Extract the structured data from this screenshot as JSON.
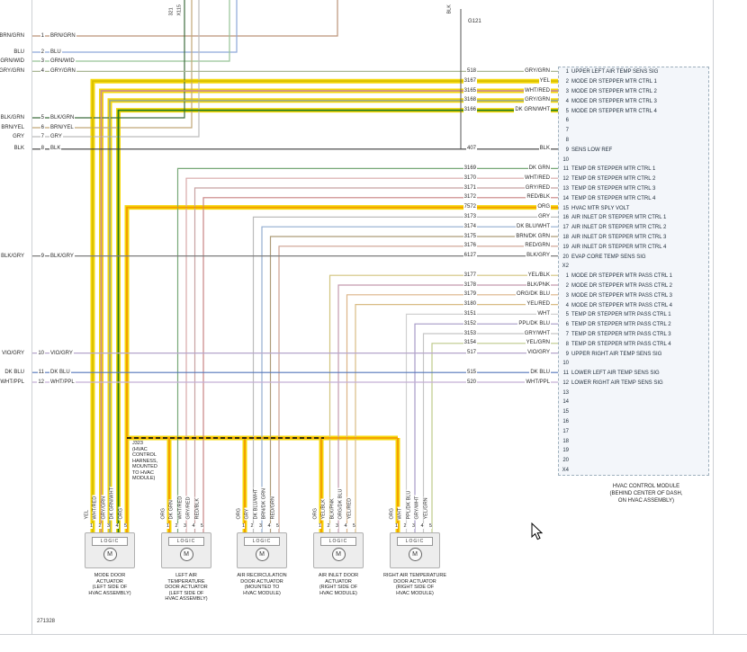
{
  "page": {
    "number": "271328"
  },
  "colors": {
    "highlight": "#f6d80a",
    "dashed_harness": "#141414",
    "page_border": "#cdd0d4",
    "module_box_border": "#9fb0bd",
    "module_box_fill": "#e9eff6"
  },
  "top_labels": {
    "circuit": "321",
    "connector": "X115",
    "ground_wire": "BLK",
    "ground": "G121"
  },
  "left_pins": [
    {
      "pin": "1",
      "color": "BRN/GRN",
      "wire": "#ba9277"
    },
    {
      "pin": "2",
      "color": "BLU",
      "wire": "#8da7d9"
    },
    {
      "pin": "3",
      "color": "GRN/WID",
      "wire": "#97c397"
    },
    {
      "pin": "4",
      "color": "GRY/GRN",
      "wire": "#a9b694"
    },
    {
      "pin": "5",
      "color": "BLK/GRN",
      "wire": "#3f6e3f"
    },
    {
      "pin": "6",
      "color": "BRN/YEL",
      "wire": "#c1a777"
    },
    {
      "pin": "7",
      "color": "GRY",
      "wire": "#bcbcbc"
    },
    {
      "pin": "8",
      "color": "BLK",
      "wire": "#3c3c3c"
    },
    {
      "pin": "9",
      "color": "BLK/GRY",
      "wire": "#7b7b7b"
    },
    {
      "pin": "10",
      "color": "VIO/GRY",
      "wire": "#b6a5ca"
    },
    {
      "pin": "11",
      "color": "DK BLU",
      "wire": "#5576ba"
    },
    {
      "pin": "12",
      "color": "WHT/PPL",
      "wire": "#c4afd5"
    }
  ],
  "circuits": [
    {
      "num": "518",
      "color": "GRY/GRN",
      "row": 0,
      "left": true,
      "wire": "#a9b694"
    },
    {
      "num": "3167",
      "color": "YEL",
      "row": 1,
      "bend": 103,
      "hl": true,
      "wire": "#d8c000"
    },
    {
      "num": "3165",
      "color": "WHT/RED",
      "row": 2,
      "bend": 112.5,
      "hl": true,
      "wire": "#cd8f8f"
    },
    {
      "num": "3168",
      "color": "GRY/GRN",
      "row": 3,
      "bend": 122,
      "hl": true,
      "wire": "#9cab85"
    },
    {
      "num": "3166",
      "color": "DK GRN/WHT",
      "row": 4,
      "bend": 131.5,
      "hl": true,
      "wire": "#1e7a1e"
    },
    {
      "num": "407",
      "color": "BLK",
      "row": 8,
      "left": true,
      "wire": "#3c3c3c"
    },
    {
      "num": "3169",
      "color": "DK GRN",
      "row": 10,
      "bend": 197.5,
      "wire": "#77a877"
    },
    {
      "num": "3170",
      "color": "WHT/RED",
      "row": 11,
      "bend": 207,
      "wire": "#d8a8a8"
    },
    {
      "num": "3171",
      "color": "GRY/RED",
      "row": 12,
      "bend": 216.5,
      "wire": "#c7a2a2"
    },
    {
      "num": "3172",
      "color": "RED/BLK",
      "row": 13,
      "bend": 226,
      "wire": "#c88484"
    },
    {
      "num": "7572",
      "color": "ORG",
      "row": 14,
      "bend": 141,
      "hl": true,
      "wire": "#f39c00"
    },
    {
      "num": "3173",
      "color": "GRY",
      "row": 15,
      "bend": 281.5,
      "wire": "#bcbcbc"
    },
    {
      "num": "3174",
      "color": "DK BLU/WHT",
      "row": 16,
      "bend": 291,
      "wire": "#92add0"
    },
    {
      "num": "3175",
      "color": "BRN/DK GRN",
      "row": 17,
      "bend": 300.5,
      "wire": "#ad9c79"
    },
    {
      "num": "3176",
      "color": "RED/GRN",
      "row": 18,
      "bend": 310,
      "wire": "#cda08f"
    },
    {
      "num": "6127",
      "color": "BLK/GRY",
      "row": 19,
      "left": true,
      "wire": "#7b7b7b"
    },
    {
      "num": "3177",
      "color": "YEL/BLK",
      "row": 21,
      "bend": 366.5,
      "wire": "#d2c47d"
    },
    {
      "num": "3178",
      "color": "BLK/PNK",
      "row": 22,
      "bend": 376,
      "wire": "#c399ad"
    },
    {
      "num": "3179",
      "color": "ORG/DK BLU",
      "row": 23,
      "bend": 385.5,
      "wire": "#dcb387"
    },
    {
      "num": "3180",
      "color": "YEL/RED",
      "row": 24,
      "bend": 395,
      "wire": "#d9bc84"
    },
    {
      "num": "3151",
      "color": "WHT",
      "row": 25,
      "bend": 451.5,
      "wire": "#d1d1d1"
    },
    {
      "num": "3152",
      "color": "PPL/DK BLU",
      "row": 26,
      "bend": 461,
      "wire": "#a69ac7"
    },
    {
      "num": "3153",
      "color": "GRY/WHT",
      "row": 27,
      "bend": 470.5,
      "wire": "#c5c5c5"
    },
    {
      "num": "3154",
      "color": "YEL/GRN",
      "row": 28,
      "bend": 480,
      "wire": "#bdca8a"
    },
    {
      "num": "517",
      "color": "VIO/GRY",
      "row": 29,
      "left": true,
      "wire": "#b6a5ca"
    },
    {
      "num": "515",
      "color": "DK BLU",
      "row": 31,
      "left": true,
      "wire": "#5576ba"
    },
    {
      "num": "520",
      "color": "WHT/PPL",
      "row": 32,
      "left": true,
      "wire": "#c4afd5"
    }
  ],
  "hvac_module": {
    "caption_lines": [
      "HVAC CONTROL MODULE",
      "(BEHIND CENTER OF DASH,",
      "ON HVAC ASSEMBLY)"
    ],
    "rows": [
      {
        "pin": "1",
        "label": "UPPER LEFT AIR TEMP SENS SIG"
      },
      {
        "pin": "2",
        "label": "MODE DR STEPPER MTR CTRL 1"
      },
      {
        "pin": "3",
        "label": "MODE DR STEPPER MTR CTRL 2"
      },
      {
        "pin": "4",
        "label": "MODE DR STEPPER MTR CTRL 3"
      },
      {
        "pin": "5",
        "label": "MODE DR STEPPER MTR CTRL 4"
      },
      {
        "pin": "6",
        "label": ""
      },
      {
        "pin": "7",
        "label": ""
      },
      {
        "pin": "8",
        "label": ""
      },
      {
        "pin": "9",
        "label": "SENS LOW REF"
      },
      {
        "pin": "10",
        "label": ""
      },
      {
        "pin": "11",
        "label": "TEMP DR STEPPER MTR CTRL 1"
      },
      {
        "pin": "12",
        "label": "TEMP DR STEPPER MTR CTRL 2"
      },
      {
        "pin": "13",
        "label": "TEMP DR STEPPER MTR CTRL 3"
      },
      {
        "pin": "14",
        "label": "TEMP DR STEPPER MTR CTRL 4"
      },
      {
        "pin": "15",
        "label": "HVAC MTR SPLY VOLT"
      },
      {
        "pin": "16",
        "label": "AIR INLET DR STEPPER MTR CTRL 1"
      },
      {
        "pin": "17",
        "label": "AIR INLET DR STEPPER MTR CTRL 2"
      },
      {
        "pin": "18",
        "label": "AIR INLET DR STEPPER MTR CTRL 3"
      },
      {
        "pin": "19",
        "label": "AIR INLET DR STEPPER MTR CTRL 4"
      },
      {
        "pin": "20",
        "label": "EVAP CORE TEMP SENS SIG"
      },
      {
        "pin": "X2",
        "label": ""
      },
      {
        "pin": "1",
        "label": "MODE DR STEPPER MTR PASS CTRL 1"
      },
      {
        "pin": "2",
        "label": "MODE DR STEPPER MTR PASS CTRL 2"
      },
      {
        "pin": "3",
        "label": "MODE DR STEPPER MTR PASS CTRL 3"
      },
      {
        "pin": "4",
        "label": "MODE DR STEPPER MTR PASS CTRL 4"
      },
      {
        "pin": "5",
        "label": "TEMP DR STEPPER MTR PASS CTRL 1"
      },
      {
        "pin": "6",
        "label": "TEMP DR STEPPER MTR PASS CTRL 2"
      },
      {
        "pin": "7",
        "label": "TEMP DR STEPPER MTR PASS CTRL 3"
      },
      {
        "pin": "8",
        "label": "TEMP DR STEPPER MTR PASS CTRL 4"
      },
      {
        "pin": "9",
        "label": "UPPER RIGHT AIR TEMP SENS SIG"
      },
      {
        "pin": "10",
        "label": ""
      },
      {
        "pin": "11",
        "label": "LOWER LEFT AIR TEMP SENS SIG"
      },
      {
        "pin": "12",
        "label": "LOWER RIGHT AIR TEMP SENS SIG"
      },
      {
        "pin": "13",
        "label": ""
      },
      {
        "pin": "14",
        "label": ""
      },
      {
        "pin": "15",
        "label": ""
      },
      {
        "pin": "16",
        "label": ""
      },
      {
        "pin": "17",
        "label": ""
      },
      {
        "pin": "18",
        "label": ""
      },
      {
        "pin": "19",
        "label": ""
      },
      {
        "pin": "20",
        "label": ""
      },
      {
        "pin": "X4",
        "label": ""
      }
    ]
  },
  "harness_note_lines": [
    "J323",
    "(HVAC",
    "CONTROL",
    "HARNESS,",
    "MOUNTED",
    "TO HVAC",
    "MODULE)"
  ],
  "actuators": [
    {
      "logic_label": "LOGIC",
      "motor_label": "M",
      "caption_lines": [
        "MODE DOOR",
        "ACTUATOR",
        "(LEFT SIDE OF",
        "HVAC ASSEMBLY)"
      ],
      "pins": [
        {
          "n": "1",
          "color": "YEL"
        },
        {
          "n": "2",
          "color": "WHT/RED"
        },
        {
          "n": "3",
          "color": "GRY/GRN"
        },
        {
          "n": "4",
          "color": "DK GRN/WHT"
        },
        {
          "n": "5",
          "color": "ORG"
        }
      ]
    },
    {
      "logic_label": "LOGIC",
      "motor_label": "M",
      "caption_lines": [
        "LEFT AIR",
        "TEMPERATURE",
        "DOOR ACTUATOR",
        "(LEFT SIDE OF",
        "HVAC ASSEMBLY)"
      ],
      "pins": [
        {
          "n": "1",
          "color": "ORG"
        },
        {
          "n": "2",
          "color": "DK GRN"
        },
        {
          "n": "3",
          "color": "WHT/RED"
        },
        {
          "n": "4",
          "color": "GRY/RED"
        },
        {
          "n": "5",
          "color": "RED/BLK"
        }
      ]
    },
    {
      "logic_label": "LOGIC",
      "motor_label": "M",
      "caption_lines": [
        "AIR RECIRCULATION",
        "DOOR ACTUATOR",
        "(MOUNTED TO",
        "HVAC MODULE)"
      ],
      "pins": [
        {
          "n": "1",
          "color": "ORG"
        },
        {
          "n": "2",
          "color": "GRY"
        },
        {
          "n": "3",
          "color": "DK BLU/WHT"
        },
        {
          "n": "4",
          "color": "BRN/DK GRN"
        },
        {
          "n": "5",
          "color": "RED/GRN"
        }
      ]
    },
    {
      "logic_label": "LOGIC",
      "motor_label": "M",
      "caption_lines": [
        "AIR INLET DOOR",
        "ACTUATOR",
        "(RIGHT SIDE OF",
        "HVAC MODULE)"
      ],
      "pins": [
        {
          "n": "1",
          "color": "ORG"
        },
        {
          "n": "2",
          "color": "YEL/BLK"
        },
        {
          "n": "3",
          "color": "BLK/PNK"
        },
        {
          "n": "4",
          "color": "ORG/DK BLU"
        },
        {
          "n": "5",
          "color": "YEL/RED"
        }
      ]
    },
    {
      "logic_label": "LOGIC",
      "motor_label": "M",
      "caption_lines": [
        "RIGHT AIR TEMPERATURE",
        "DOOR ACTUATOR",
        "(RIGHT SIDE OF",
        "HVAC MODULE)"
      ],
      "pins": [
        {
          "n": "1",
          "color": "ORG"
        },
        {
          "n": "2",
          "color": "WHT"
        },
        {
          "n": "3",
          "color": "PPL/DK BLU"
        },
        {
          "n": "4",
          "color": "GRY/WHT"
        },
        {
          "n": "5",
          "color": "YEL/GRN"
        }
      ]
    }
  ]
}
